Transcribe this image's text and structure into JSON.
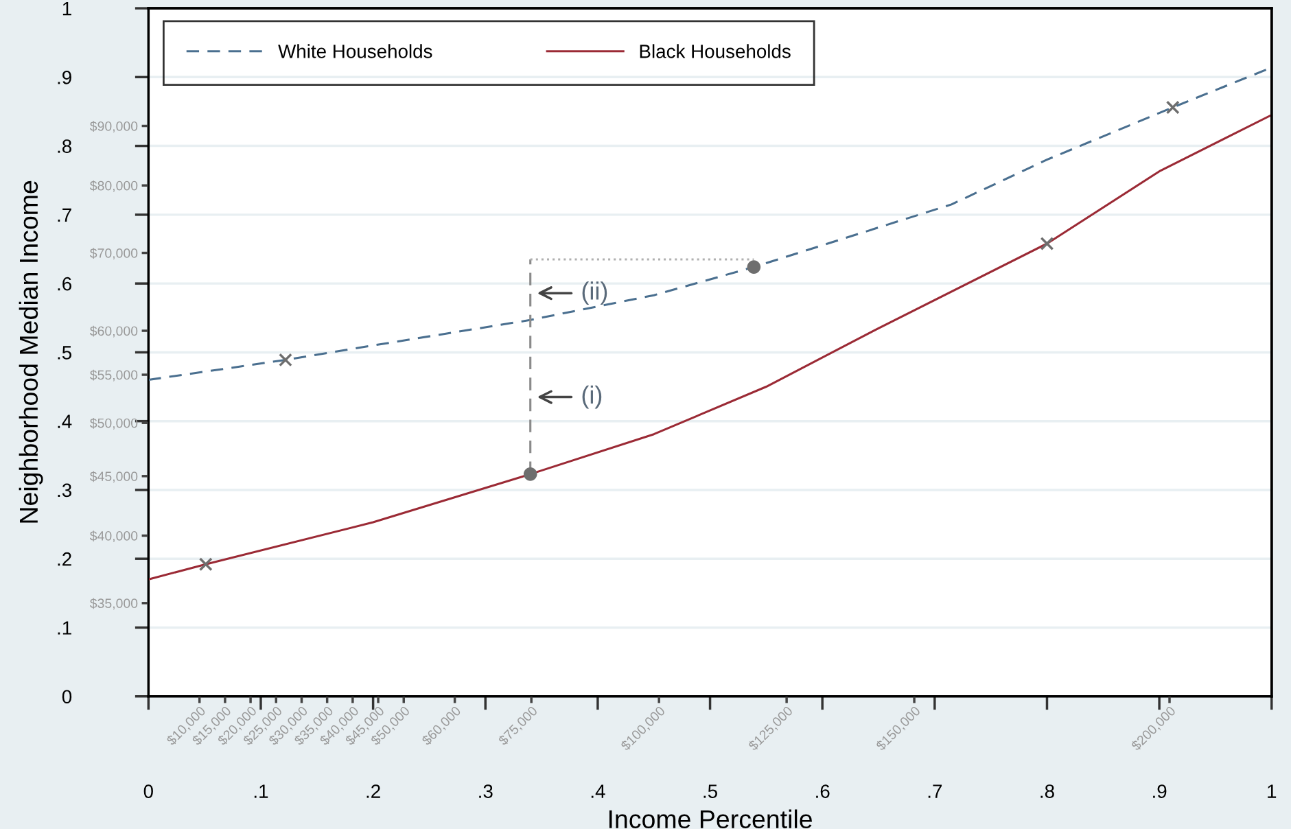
{
  "chart_data": {
    "type": "line",
    "xlabel": "Income Percentile",
    "ylabel": "Neighborhood Median Income",
    "xlim": [
      0,
      1
    ],
    "ylim": [
      0,
      1
    ],
    "xticks": [
      0,
      {
        "value": 0.1,
        "label": ".1"
      },
      {
        "value": 0.2,
        "label": ".2"
      },
      {
        "value": 0.3,
        "label": ".3"
      },
      {
        "value": 0.4,
        "label": ".4"
      },
      {
        "value": 0.5,
        "label": ".5"
      },
      {
        "value": 0.6,
        "label": ".6"
      },
      {
        "value": 0.7,
        "label": ".7"
      },
      {
        "value": 0.8,
        "label": ".8"
      },
      {
        "value": 0.9,
        "label": ".9"
      },
      1
    ],
    "yticks": [
      0,
      {
        "value": 0.1,
        "label": ".1"
      },
      {
        "value": 0.2,
        "label": ".2"
      },
      {
        "value": 0.3,
        "label": ".3"
      },
      {
        "value": 0.4,
        "label": ".4"
      },
      {
        "value": 0.5,
        "label": ".5"
      },
      {
        "value": 0.6,
        "label": ".6"
      },
      {
        "value": 0.7,
        "label": ".7"
      },
      {
        "value": 0.8,
        "label": ".8"
      },
      {
        "value": 0.9,
        "label": ".9"
      },
      1
    ],
    "log": "y2",
    "y2lim": [
      29100,
      113600
    ],
    "y2ticks": [
      {
        "value": 35000,
        "label": "$35,000"
      },
      {
        "value": 40000,
        "label": "$40,000"
      },
      {
        "value": 45000,
        "label": "$45,000"
      },
      {
        "value": 50000,
        "label": "$50,000"
      },
      {
        "value": 55000,
        "label": "$55,000"
      },
      {
        "value": 60000,
        "label": "$60,000"
      },
      {
        "value": 70000,
        "label": "$70,000"
      },
      {
        "value": 80000,
        "label": "$80,000"
      },
      {
        "value": 90000,
        "label": "$90,000"
      }
    ],
    "x2lim": [
      0,
      220000
    ],
    "x2ticks": [
      {
        "value": 10000,
        "label": "$10,000"
      },
      {
        "value": 15000,
        "label": "$15,000"
      },
      {
        "value": 20000,
        "label": "$20,000"
      },
      {
        "value": 25000,
        "label": "$25,000"
      },
      {
        "value": 30000,
        "label": "$30,000"
      },
      {
        "value": 35000,
        "label": "$35,000"
      },
      {
        "value": 40000,
        "label": "$40,000"
      },
      {
        "value": 45000,
        "label": "$45,000"
      },
      {
        "value": 50000,
        "label": "$50,000"
      },
      {
        "value": 60000,
        "label": "$60,000"
      },
      {
        "value": 75000,
        "label": "$75,000"
      },
      {
        "value": 100000,
        "label": "$100,000"
      },
      {
        "value": 125000,
        "label": "$125,000"
      },
      {
        "value": 150000,
        "label": "$150,000"
      },
      {
        "value": 200000,
        "label": "$200,000"
      }
    ],
    "grid": "y",
    "legend": "top left",
    "series": [
      {
        "name": "White Households",
        "color": "#4a6f8f",
        "line_style": "dashed",
        "x": [
          0,
          0.122,
          0.2,
          0.34,
          0.45,
          0.539,
          0.715,
          0.8,
          0.912,
          1
        ],
        "values": [
          0.46,
          0.489,
          0.51,
          0.547,
          0.583,
          0.624,
          0.715,
          0.78,
          0.856,
          0.914
        ]
      },
      {
        "name": "Black Households",
        "color": "#9b2a35",
        "line_style": "solid",
        "x": [
          0,
          0.051,
          0.2,
          0.34,
          0.45,
          0.55,
          0.65,
          0.8,
          0.9,
          1
        ],
        "values": [
          0.17,
          0.192,
          0.253,
          0.323,
          0.381,
          0.45,
          0.535,
          0.658,
          0.763,
          0.845
        ]
      },
      {
        "type": "line",
        "color": "#8a8a8a",
        "line_style": "dashed",
        "x": [
          0.34,
          0.34
        ],
        "values": [
          0.323,
          0.635
        ]
      },
      {
        "type": "line",
        "color": "#b0b0b0",
        "line_style": "dotted",
        "x": [
          0.34,
          0.539
        ],
        "values": [
          0.635,
          0.635
        ]
      },
      {
        "type": "scatter",
        "color": "#6e6e6e",
        "marker": "circle",
        "x": [
          0.34,
          0.539
        ],
        "values": [
          0.323,
          0.624
        ]
      },
      {
        "type": "scatter",
        "color": "#6e6e6e",
        "marker": "cross",
        "x": [
          0.051,
          0.122,
          0.8,
          0.912
        ],
        "values": [
          0.192,
          0.489,
          0.658,
          0.856
        ]
      }
    ],
    "annotations": [
      {
        "text": "(i)",
        "x": 0.34,
        "y": 0.435
      },
      {
        "text": "(ii)",
        "x": 0.34,
        "y": 0.586
      }
    ]
  }
}
